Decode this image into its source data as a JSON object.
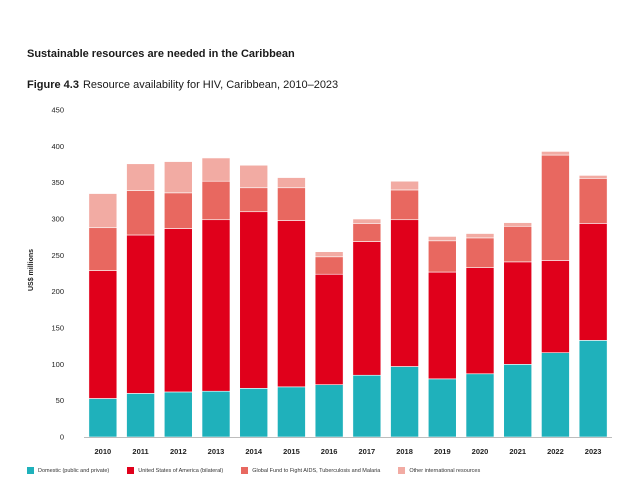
{
  "heading": "Sustainable resources are needed in the Caribbean",
  "figure": {
    "number": "Figure 4.3",
    "caption": "Resource availability for HIV, Caribbean, 2010–2023"
  },
  "chart_data": {
    "type": "bar",
    "stacked": true,
    "categories": [
      "2010",
      "2011",
      "2012",
      "2013",
      "2014",
      "2015",
      "2016",
      "2017",
      "2018",
      "2019",
      "2020",
      "2021",
      "2022",
      "2023"
    ],
    "series": [
      {
        "name": "Domestic (public and private)",
        "color": "#1fb1bb",
        "values": [
          53,
          60,
          62,
          63,
          67,
          69,
          72,
          85,
          97,
          80,
          87,
          100,
          116,
          133
        ]
      },
      {
        "name": "United States of America (bilateral)",
        "color": "#e0001b",
        "values": [
          176,
          218,
          225,
          236,
          243,
          229,
          152,
          184,
          202,
          147,
          146,
          141,
          127,
          161
        ]
      },
      {
        "name": "Global Fund to Fight AIDS, Tuberculosis and Malaria",
        "color": "#e86860",
        "values": [
          59,
          61,
          49,
          53,
          33,
          45,
          24,
          25,
          41,
          43,
          41,
          49,
          145,
          62
        ]
      },
      {
        "name": "Other international resources",
        "color": "#f2aba3",
        "values": [
          47,
          37,
          43,
          32,
          31,
          14,
          7,
          6,
          12,
          6,
          6,
          5,
          5,
          4
        ]
      }
    ],
    "xlabel": "",
    "ylabel": "US$ millions",
    "ylim": [
      0,
      450
    ],
    "yticks": [
      0,
      50,
      100,
      150,
      200,
      250,
      300,
      350,
      400,
      450
    ],
    "grid": false,
    "legend_position": "bottom"
  }
}
